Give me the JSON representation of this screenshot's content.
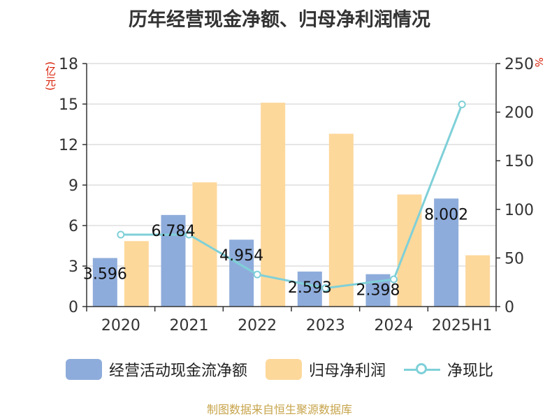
{
  "title": "历年经营现金净额、归母净利润情况",
  "left_unit": "(亿元)",
  "right_unit": "%",
  "source": "制图数据来自恒生聚源数据库",
  "legend": {
    "items": [
      {
        "label": "经营活动现金流净额",
        "color": "#8eacdb",
        "kind": "bar"
      },
      {
        "label": "归母净利润",
        "color": "#fdd89b",
        "kind": "bar"
      },
      {
        "label": "净现比",
        "color": "#7fd0d8",
        "kind": "line"
      }
    ]
  },
  "chart_data": {
    "type": "bar",
    "title": "历年经营现金净额、归母净利润情况",
    "categories": [
      "2020",
      "2021",
      "2022",
      "2023",
      "2024",
      "2025H1"
    ],
    "series": [
      {
        "name": "经营活动现金流净额",
        "axis": "left",
        "values": [
          3.596,
          6.784,
          4.954,
          2.593,
          2.398,
          8.002
        ],
        "color": "#8eacdb",
        "labels": [
          "3.596",
          "6.784",
          "4.954",
          "2.593",
          "2.398",
          "8.002"
        ]
      },
      {
        "name": "归母净利润",
        "axis": "left",
        "values": [
          4.85,
          9.2,
          15.1,
          12.8,
          8.3,
          3.8
        ],
        "color": "#fdd89b"
      },
      {
        "name": "净现比",
        "axis": "right",
        "type": "line",
        "values": [
          74,
          74,
          33,
          19,
          28,
          208
        ],
        "color": "#7fd0d8"
      }
    ],
    "ylim": [
      0,
      18
    ],
    "yticks": [
      0,
      3,
      6,
      9,
      12,
      15,
      18
    ],
    "y2lim": [
      0,
      250
    ],
    "y2ticks": [
      0,
      50,
      100,
      150,
      200,
      250
    ],
    "grid": true,
    "legend_position": "bottom"
  }
}
